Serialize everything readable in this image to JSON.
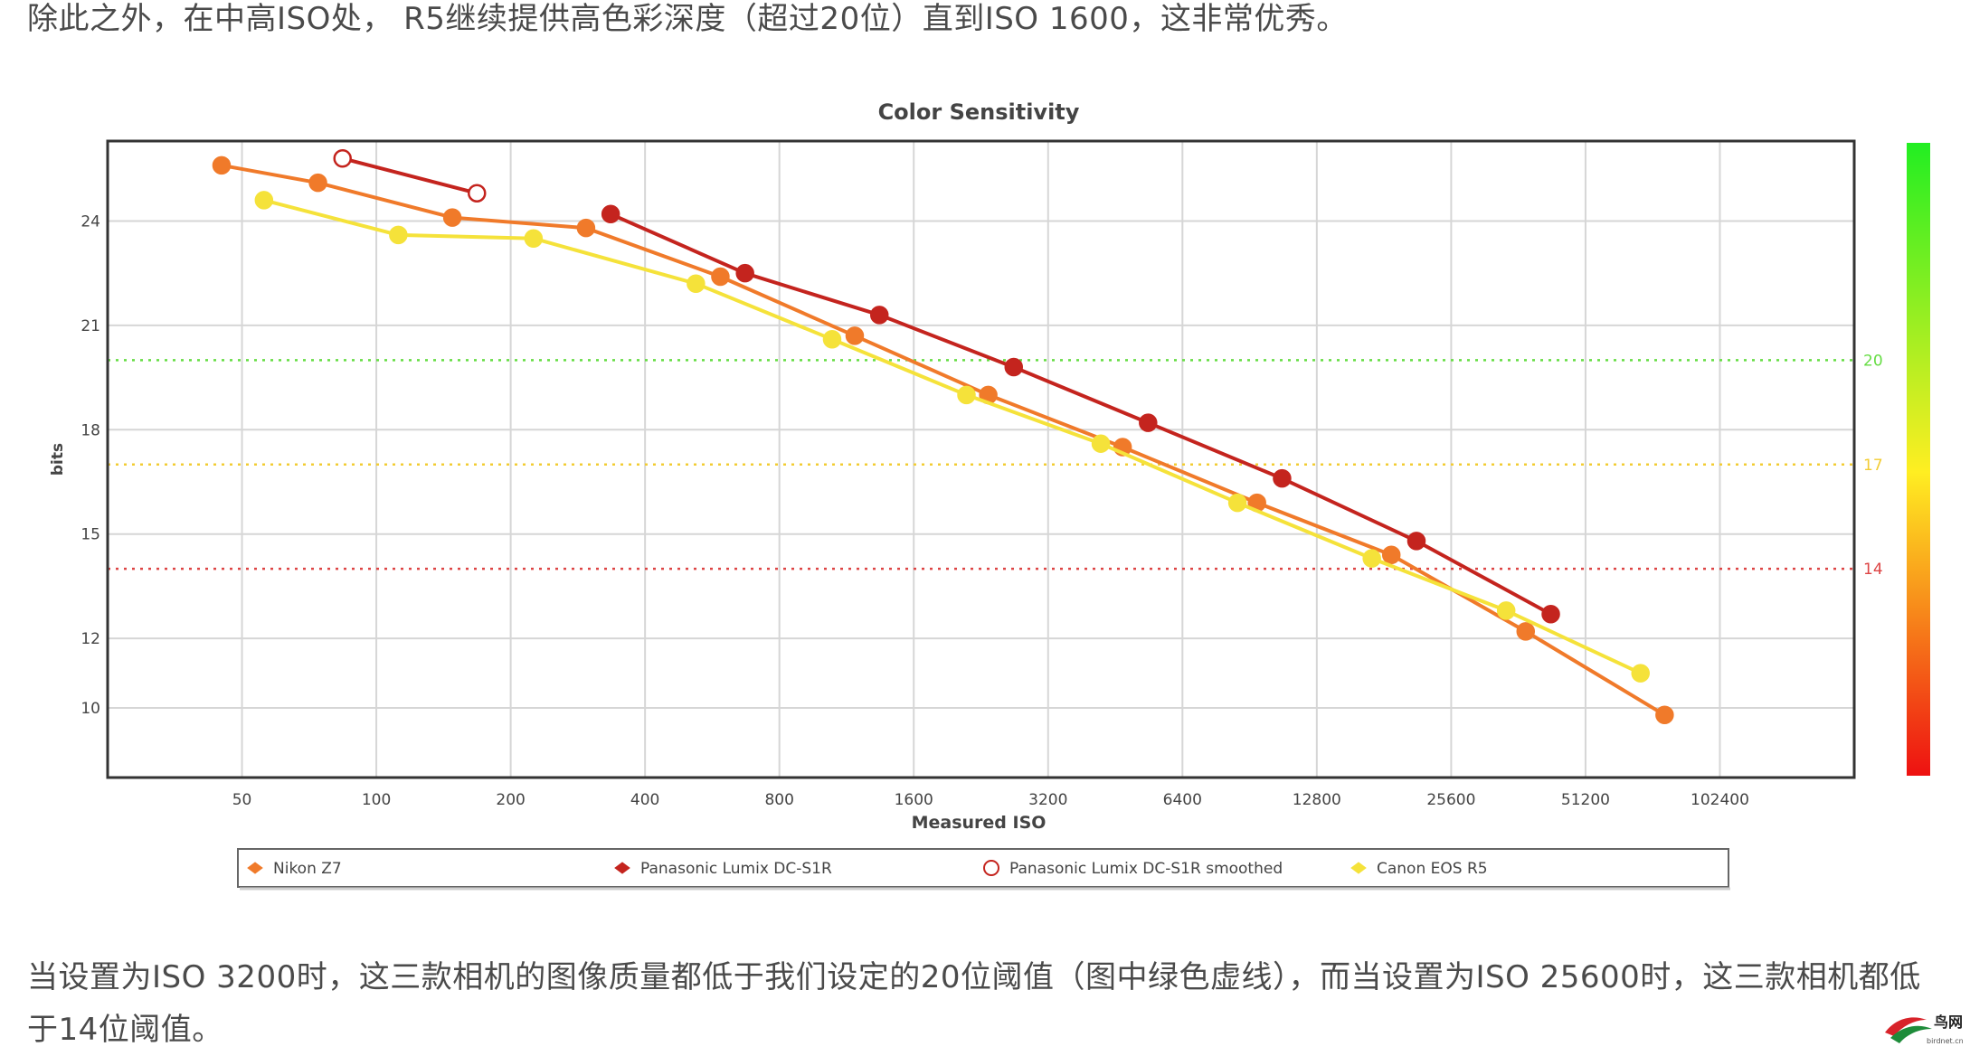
{
  "paragraphs": {
    "intro": "除此之外，在中高ISO处， R5继续提供高色彩深度（超过20位）直到ISO 1600，这非常优秀。",
    "conclusion": "当设置为ISO 3200时，这三款相机的图像质量都低于我们设定的20位阈值（图中绿色虚线），而当设置为ISO 25600时，这三款相机都低于14位阈值。"
  },
  "logo": {
    "text": "鸟网",
    "subtext": "birdnet.cn"
  },
  "chart_data": {
    "type": "line",
    "title": "Color Sensitivity",
    "xlabel": "Measured ISO",
    "ylabel": "bits",
    "x_scale": "log2",
    "x_ticks": [
      50,
      100,
      200,
      400,
      800,
      1600,
      3200,
      6400,
      12800,
      25600,
      51200,
      102400
    ],
    "x_tick_labels": [
      "50",
      "100",
      "200",
      "400",
      "800",
      "1600",
      "3200",
      "6400",
      "12800",
      "25600",
      "51200",
      "102400"
    ],
    "xlim": [
      25,
      204800
    ],
    "y_ticks": [
      10,
      12,
      15,
      18,
      21,
      24
    ],
    "y_tick_labels": [
      "10",
      "12",
      "15",
      "18",
      "21",
      "24"
    ],
    "ylim": [
      8,
      26.3
    ],
    "grid": true,
    "legend_position": "bottom",
    "thresholds": [
      {
        "value": 20,
        "label": "20",
        "color": "#66dd44"
      },
      {
        "value": 17,
        "label": "17",
        "color": "#f2cc33"
      },
      {
        "value": 14,
        "label": "14",
        "color": "#dd4444"
      }
    ],
    "color_scale": {
      "top": "#22ee22",
      "middle": "#ffee22",
      "bottom": "#ee1111"
    },
    "series": [
      {
        "name": "Nikon Z7",
        "color": "#f07a2a",
        "marker_fill": "#f07a2a",
        "points": [
          [
            45,
            25.6
          ],
          [
            74,
            25.1
          ],
          [
            148,
            24.1
          ],
          [
            295,
            23.8
          ],
          [
            590,
            22.4
          ],
          [
            1180,
            20.7
          ],
          [
            2350,
            19.0
          ],
          [
            4700,
            17.5
          ],
          [
            9400,
            15.9
          ],
          [
            18800,
            14.4
          ],
          [
            37600,
            12.2
          ],
          [
            77000,
            9.8
          ]
        ]
      },
      {
        "name": "Panasonic Lumix DC-S1R",
        "color": "#c4241e",
        "marker_fill": "#c4241e",
        "points": [
          [
            335,
            24.2
          ],
          [
            670,
            22.5
          ],
          [
            1340,
            21.3
          ],
          [
            2680,
            19.8
          ],
          [
            5360,
            18.2
          ],
          [
            10700,
            16.6
          ],
          [
            21400,
            14.8
          ],
          [
            42800,
            12.7
          ]
        ]
      },
      {
        "name": "Panasonic Lumix DC-S1R smoothed",
        "color": "#c4241e",
        "marker_fill": "#ffffff",
        "points": [
          [
            84,
            25.8
          ],
          [
            168,
            24.8
          ]
        ]
      },
      {
        "name": "Canon EOS R5",
        "color": "#f5e23a",
        "marker_fill": "#f5e23a",
        "points": [
          [
            56,
            24.6
          ],
          [
            112,
            23.6
          ],
          [
            225,
            23.5
          ],
          [
            520,
            22.2
          ],
          [
            1050,
            20.6
          ],
          [
            2100,
            19.0
          ],
          [
            4200,
            17.6
          ],
          [
            8500,
            15.9
          ],
          [
            17000,
            14.3
          ],
          [
            34000,
            12.8
          ],
          [
            68000,
            11.0
          ]
        ]
      }
    ]
  }
}
